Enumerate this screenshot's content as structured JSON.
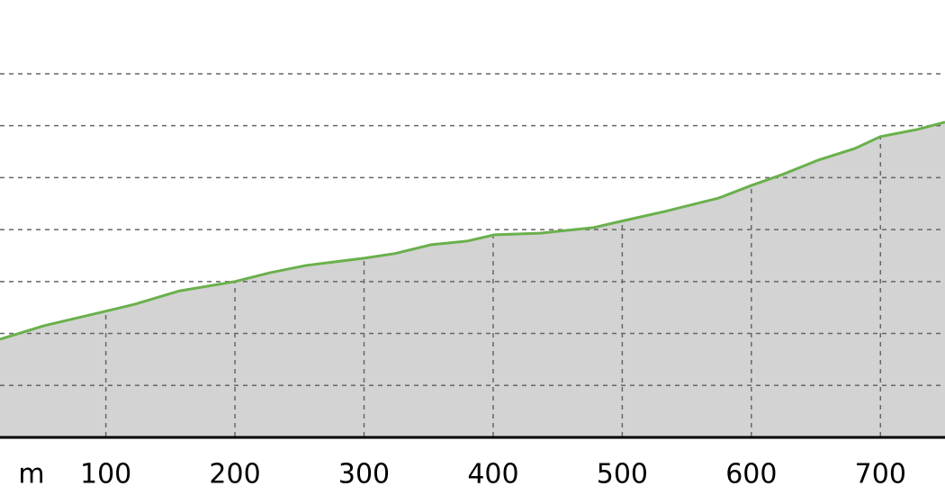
{
  "chart_data": {
    "type": "area",
    "x_label": "m",
    "x": [
      18,
      52,
      88,
      122,
      157,
      200,
      227,
      255,
      300,
      324,
      352,
      380,
      401,
      436,
      478,
      499,
      533,
      575,
      600,
      624,
      652,
      680,
      700,
      729,
      750
    ],
    "series": [
      {
        "color": "#6ab04c",
        "fill": "#d3d3d3",
        "values": [
          1.89,
          2.15,
          2.36,
          2.56,
          2.82,
          3.0,
          3.17,
          3.31,
          3.45,
          3.54,
          3.71,
          3.78,
          3.9,
          3.93,
          4.04,
          4.16,
          4.35,
          4.61,
          4.85,
          5.06,
          5.34,
          5.56,
          5.79,
          5.93,
          6.07
        ]
      }
    ],
    "xlim": [
      18,
      750
    ],
    "xticks": [
      100,
      200,
      300,
      400,
      500,
      600,
      700
    ],
    "ylim": [
      0,
      8.42
    ],
    "yticks": [
      1,
      2,
      3,
      4,
      5,
      6,
      7
    ],
    "grid": true
  }
}
